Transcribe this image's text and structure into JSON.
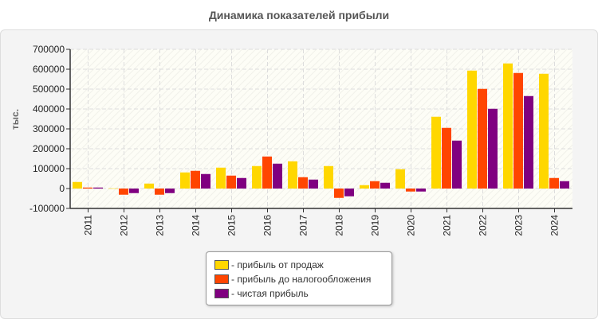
{
  "chart_data": {
    "type": "bar",
    "title": "Динамика показателей прибыли",
    "ylabel": "тыс.",
    "xlabel": "",
    "ylim": [
      -100000,
      700000
    ],
    "yticks": [
      700000,
      600000,
      500000,
      400000,
      300000,
      200000,
      100000,
      0,
      -100000
    ],
    "grid": true,
    "legend_position": "bottom",
    "categories": [
      "2011",
      "2012",
      "2013",
      "2014",
      "2015",
      "2016",
      "2017",
      "2018",
      "2019",
      "2020",
      "2021",
      "2022",
      "2023",
      "2024"
    ],
    "series": [
      {
        "name": "- прибыль от продаж",
        "color": "#ffd700",
        "values": [
          33000,
          1000,
          25000,
          81000,
          105000,
          113000,
          137000,
          113000,
          17000,
          97000,
          361000,
          593000,
          629000,
          577000
        ]
      },
      {
        "name": "- прибыль до налогообложения",
        "color": "#ff4500",
        "values": [
          5000,
          -31000,
          -31000,
          89000,
          65000,
          161000,
          57000,
          -47000,
          37000,
          -15000,
          305000,
          501000,
          581000,
          53000
        ]
      },
      {
        "name": "- чистая прибыль",
        "color": "#800080",
        "values": [
          5000,
          -23000,
          -23000,
          73000,
          53000,
          125000,
          45000,
          -39000,
          29000,
          -15000,
          241000,
          401000,
          465000,
          37000
        ]
      }
    ]
  }
}
